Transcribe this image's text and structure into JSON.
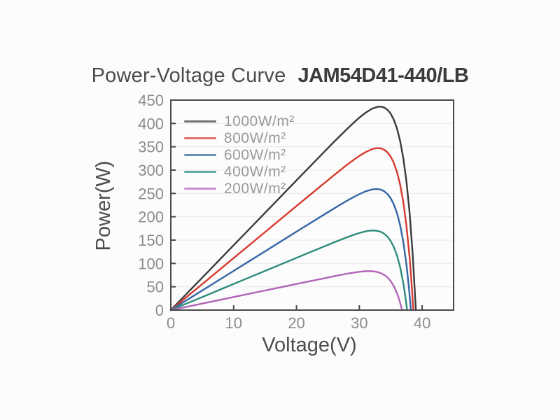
{
  "title": {
    "main": "Power-Voltage Curve",
    "model": "JAM54D41-440/LB"
  },
  "chart_data": {
    "type": "line",
    "title": "Power-Voltage Curve",
    "subtitle": "JAM54D41-440/LB",
    "xlabel": "Voltage(V)",
    "ylabel": "Power(W)",
    "xlim": [
      0,
      45
    ],
    "ylim": [
      0,
      450
    ],
    "x_ticks": [
      0,
      10,
      20,
      30,
      40
    ],
    "y_ticks": [
      0,
      50,
      100,
      150,
      200,
      250,
      300,
      350,
      400,
      450
    ],
    "grid": "horizontal-only",
    "legend_position": "inside-top-left",
    "series": [
      {
        "name": "1000W/m²",
        "color": "#3b3b3b",
        "pmax_w": 437,
        "voc_v": 39.0,
        "points": [
          [
            0,
            0
          ],
          [
            3,
            41.7
          ],
          [
            6,
            83.4
          ],
          [
            9,
            125.1
          ],
          [
            12,
            166.8
          ],
          [
            15,
            208.5
          ],
          [
            18,
            250.2
          ],
          [
            21,
            291.9
          ],
          [
            24,
            333.4
          ],
          [
            26,
            360.9
          ],
          [
            28,
            387.6
          ],
          [
            29,
            400.4
          ],
          [
            30,
            412.4
          ],
          [
            31,
            423.0
          ],
          [
            32,
            431.4
          ],
          [
            33,
            435.9
          ],
          [
            33.5,
            435.9
          ],
          [
            34,
            433.8
          ],
          [
            34.5,
            429.0
          ],
          [
            35,
            420.7
          ],
          [
            35.5,
            407.7
          ],
          [
            36,
            388.8
          ],
          [
            36.5,
            362.0
          ],
          [
            37,
            325.1
          ],
          [
            37.5,
            275.0
          ],
          [
            38,
            207.8
          ],
          [
            38.5,
            118.4
          ],
          [
            39,
            0
          ]
        ]
      },
      {
        "name": "800W/m²",
        "color": "#d63a2f",
        "pmax_w": 350,
        "voc_v": 38.6,
        "points": [
          [
            0,
            0
          ],
          [
            3,
            33.5
          ],
          [
            6,
            66.9
          ],
          [
            9,
            100.4
          ],
          [
            12,
            133.8
          ],
          [
            15,
            167.3
          ],
          [
            18,
            200.7
          ],
          [
            21,
            234.2
          ],
          [
            24,
            267.4
          ],
          [
            26,
            289.4
          ],
          [
            28,
            310.9
          ],
          [
            29,
            321.0
          ],
          [
            30,
            330.5
          ],
          [
            31,
            338.6
          ],
          [
            32,
            344.7
          ],
          [
            32.5,
            346.5
          ],
          [
            33,
            347.1
          ],
          [
            33.5,
            346.2
          ],
          [
            34,
            343.3
          ],
          [
            34.5,
            337.7
          ],
          [
            35,
            328.6
          ],
          [
            35.5,
            315.1
          ],
          [
            36,
            295.5
          ],
          [
            36.5,
            268.4
          ],
          [
            37,
            231.0
          ],
          [
            37.5,
            180.2
          ],
          [
            38,
            112.2
          ],
          [
            38.3,
            60.9
          ],
          [
            38.6,
            0
          ]
        ]
      },
      {
        "name": "600W/m²",
        "color": "#3566a4",
        "pmax_w": 262,
        "voc_v": 38.2,
        "points": [
          [
            0,
            0
          ],
          [
            3,
            25.2
          ],
          [
            6,
            50.4
          ],
          [
            9,
            75.6
          ],
          [
            12,
            100.8
          ],
          [
            15,
            126.0
          ],
          [
            18,
            151.2
          ],
          [
            21,
            176.4
          ],
          [
            24,
            201.5
          ],
          [
            26,
            218.0
          ],
          [
            28,
            234.1
          ],
          [
            29,
            241.7
          ],
          [
            30,
            248.6
          ],
          [
            31,
            254.5
          ],
          [
            32,
            258.5
          ],
          [
            32.5,
            259.4
          ],
          [
            33,
            259.2
          ],
          [
            33.5,
            257.7
          ],
          [
            34,
            254.3
          ],
          [
            34.5,
            248.4
          ],
          [
            35,
            239.4
          ],
          [
            35.5,
            226.2
          ],
          [
            36,
            207.4
          ],
          [
            36.5,
            181.3
          ],
          [
            37,
            145.6
          ],
          [
            37.5,
            97.1
          ],
          [
            37.9,
            46.5
          ],
          [
            38.2,
            0
          ]
        ]
      },
      {
        "name": "400W/m²",
        "color": "#2e8c7c",
        "pmax_w": 172,
        "voc_v": 37.6,
        "points": [
          [
            0,
            0
          ],
          [
            3,
            16.8
          ],
          [
            6,
            33.6
          ],
          [
            9,
            50.4
          ],
          [
            12,
            67.2
          ],
          [
            15,
            84.0
          ],
          [
            18,
            100.8
          ],
          [
            21,
            117.6
          ],
          [
            24,
            134.3
          ],
          [
            26,
            145.3
          ],
          [
            28,
            155.9
          ],
          [
            29,
            160.8
          ],
          [
            30,
            165.2
          ],
          [
            31,
            168.7
          ],
          [
            31.5,
            169.9
          ],
          [
            32,
            170.5
          ],
          [
            32.5,
            170.4
          ],
          [
            33,
            169.4
          ],
          [
            33.5,
            167.2
          ],
          [
            34,
            163.2
          ],
          [
            34.5,
            157.1
          ],
          [
            35,
            147.9
          ],
          [
            35.5,
            134.9
          ],
          [
            36,
            116.7
          ],
          [
            36.5,
            91.6
          ],
          [
            37,
            57.3
          ],
          [
            37.3,
            31.2
          ],
          [
            37.6,
            0
          ]
        ]
      },
      {
        "name": "200W/m²",
        "color": "#b164b7",
        "pmax_w": 83,
        "voc_v": 36.8,
        "points": [
          [
            0,
            0
          ],
          [
            3,
            8.4
          ],
          [
            6,
            16.8
          ],
          [
            9,
            25.2
          ],
          [
            12,
            33.6
          ],
          [
            15,
            42.0
          ],
          [
            18,
            50.4
          ],
          [
            21,
            58.8
          ],
          [
            24,
            67.1
          ],
          [
            26,
            72.6
          ],
          [
            28,
            77.8
          ],
          [
            29,
            80.1
          ],
          [
            30,
            82.1
          ],
          [
            30.5,
            82.8
          ],
          [
            31,
            83.3
          ],
          [
            31.5,
            83.6
          ],
          [
            32,
            83.3
          ],
          [
            32.5,
            82.6
          ],
          [
            33,
            81.2
          ],
          [
            33.5,
            78.8
          ],
          [
            34,
            75.1
          ],
          [
            34.5,
            69.7
          ],
          [
            35,
            61.9
          ],
          [
            35.5,
            51.1
          ],
          [
            36,
            36.2
          ],
          [
            36.4,
            20.3
          ],
          [
            36.8,
            0
          ]
        ]
      }
    ]
  },
  "colors": {
    "background": "#fcfcfc",
    "axis": "#4a4a4a",
    "grid": "#e7e7e7",
    "tick_label": "#8c8c8c",
    "axis_label": "#4d4d4d",
    "legend_text": "#9a9a9a",
    "title_main": "#4b4b4b",
    "title_model": "#3b3b3b"
  }
}
